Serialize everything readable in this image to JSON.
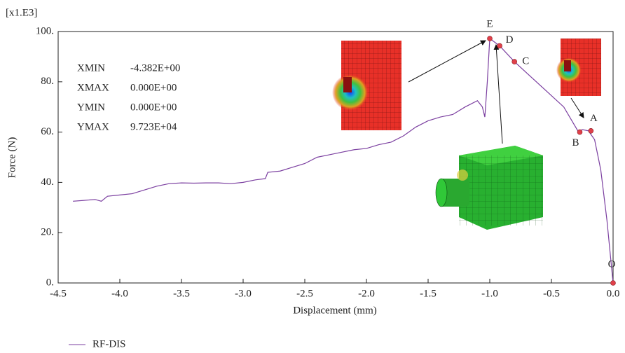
{
  "chart_data": {
    "type": "line",
    "unit_label": "[x1.E3]",
    "x_label": "Displacement (mm)",
    "y_label": "Force (N)",
    "xlim": [
      -4.5,
      0.0
    ],
    "ylim": [
      0,
      100
    ],
    "xticks": [
      -4.5,
      {
        "value": -4,
        "label": "-4.0"
      },
      -3.5,
      {
        "value": -3,
        "label": "-3.0"
      },
      -2.5,
      {
        "value": -2,
        "label": "-2.0"
      },
      -1.5,
      {
        "value": -1,
        "label": "-1.0"
      },
      -0.5,
      {
        "value": 0,
        "label": "0.0"
      }
    ],
    "yticks": [
      {
        "value": 0,
        "label": "0."
      },
      {
        "value": 20,
        "label": "20."
      },
      {
        "value": 40,
        "label": "40."
      },
      {
        "value": 60,
        "label": "60."
      },
      {
        "value": 80,
        "label": "80."
      },
      {
        "value": 100,
        "label": "100."
      }
    ],
    "x": [
      -4.38,
      -4.3,
      -4.2,
      -4.15,
      -4.1,
      -4.0,
      -3.9,
      -3.8,
      -3.7,
      -3.6,
      -3.5,
      -3.4,
      -3.3,
      -3.2,
      -3.1,
      -3.0,
      -2.9,
      -2.82,
      -2.8,
      -2.7,
      -2.6,
      -2.5,
      -2.4,
      -2.3,
      -2.2,
      -2.1,
      -2.0,
      -1.9,
      -1.8,
      -1.7,
      -1.6,
      -1.5,
      -1.4,
      -1.3,
      -1.2,
      -1.1,
      -1.06,
      -1.04,
      -1.02,
      -1.0,
      -0.92,
      -0.8,
      -0.6,
      -0.4,
      -0.28,
      -0.25,
      -0.2,
      -0.15,
      -0.1,
      -0.05,
      0.0
    ],
    "series": [
      {
        "name": "RF-DIS",
        "color": "#7b3fa0",
        "values": [
          32.5,
          32.8,
          33.2,
          32.5,
          34.5,
          35,
          35.5,
          37,
          38.5,
          39.5,
          39.8,
          39.7,
          39.8,
          39.8,
          39.5,
          40,
          41,
          41.5,
          44,
          44.5,
          46,
          47.5,
          50,
          51,
          52,
          53,
          53.5,
          55,
          56,
          58.5,
          62,
          64.5,
          66,
          67,
          70,
          72.5,
          70,
          66,
          80,
          97.2,
          94.3,
          88,
          79,
          70,
          60,
          61,
          60.5,
          57,
          45,
          25,
          0
        ]
      }
    ],
    "points": [
      {
        "label": "E",
        "x": -1.0,
        "y": 97.2
      },
      {
        "label": "D",
        "x": -0.92,
        "y": 94.3
      },
      {
        "label": "C",
        "x": -0.8,
        "y": 88
      },
      {
        "label": "A",
        "x": -0.18,
        "y": 60.5
      },
      {
        "label": "B",
        "x": -0.27,
        "y": 60
      },
      {
        "label": "O",
        "x": 0.0,
        "y": 0
      }
    ],
    "point_color": "#e0404a",
    "stats": [
      {
        "name": "XMIN",
        "value": "-4.382E+00"
      },
      {
        "name": "XMAX",
        "value": "0.000E+00"
      },
      {
        "name": "YMIN",
        "value": "0.000E+00"
      },
      {
        "name": "YMAX",
        "value": "9.723E+04"
      }
    ]
  }
}
